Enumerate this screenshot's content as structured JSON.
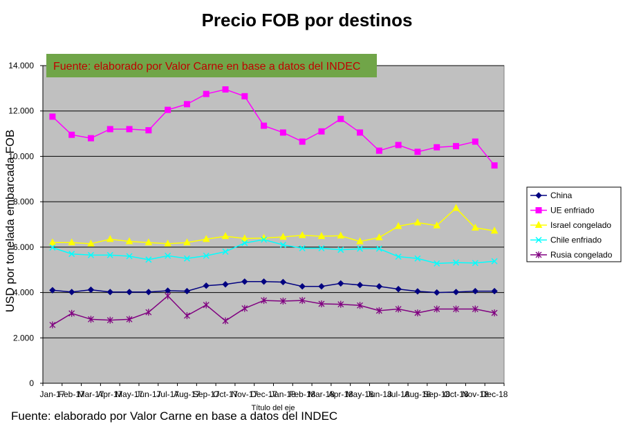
{
  "chart_data": {
    "type": "line",
    "title": "Precio FOB por destinos",
    "xlabel": "Título del eje",
    "ylabel": "USD por tonelada embarcada FOB",
    "ylim": [
      0,
      14000
    ],
    "yticks": [
      0,
      2000,
      4000,
      6000,
      8000,
      10000,
      12000,
      14000
    ],
    "ytick_labels": [
      "0",
      "2.000",
      "4.000",
      "6.000",
      "8.000",
      "10.000",
      "12.000",
      "14.000"
    ],
    "grid": true,
    "legend_position": "right",
    "categories": [
      "Jan-17",
      "Feb-17",
      "Mar-17",
      "Apr-17",
      "May-17",
      "Jun-17",
      "Jul-17",
      "Aug-17",
      "Sep-17",
      "Oct-17",
      "Nov-17",
      "Dec-17",
      "Jan-18",
      "Feb-18",
      "Mar-18",
      "Apr-18",
      "May-18",
      "Jun-18",
      "Jul-18",
      "Aug-18",
      "Sep-18",
      "Oct-18",
      "Nov-18",
      "Dec-18"
    ],
    "series": [
      {
        "name": "China",
        "color": "#000080",
        "marker": "diamond",
        "values": [
          4100,
          4020,
          4120,
          4020,
          4020,
          4020,
          4080,
          4060,
          4300,
          4360,
          4480,
          4480,
          4460,
          4270,
          4270,
          4400,
          4330,
          4270,
          4150,
          4050,
          4000,
          4020,
          4060,
          4060
        ]
      },
      {
        "name": "UE enfriado",
        "color": "#ff00ff",
        "marker": "square",
        "values": [
          11750,
          10950,
          10800,
          11200,
          11200,
          11150,
          12050,
          12300,
          12750,
          12950,
          12650,
          11350,
          11050,
          10650,
          11100,
          11650,
          11050,
          10250,
          10500,
          10200,
          10400,
          10450,
          10650,
          9600
        ]
      },
      {
        "name": "Israel congelado",
        "color": "#ffff00",
        "marker": "triangle",
        "values": [
          6200,
          6200,
          6150,
          6350,
          6250,
          6200,
          6150,
          6200,
          6350,
          6480,
          6380,
          6400,
          6450,
          6520,
          6480,
          6500,
          6250,
          6420,
          6920,
          7080,
          6950,
          7720,
          6850,
          6720
        ]
      },
      {
        "name": "Chile enfriado",
        "color": "#00ffff",
        "marker": "x",
        "values": [
          5980,
          5700,
          5650,
          5650,
          5600,
          5450,
          5620,
          5500,
          5620,
          5800,
          6180,
          6330,
          6100,
          5950,
          5950,
          5880,
          5930,
          5930,
          5580,
          5500,
          5280,
          5320,
          5300,
          5380
        ]
      },
      {
        "name": "Rusia congelado",
        "color": "#800080",
        "marker": "star",
        "values": [
          2570,
          3080,
          2820,
          2780,
          2820,
          3130,
          3850,
          2980,
          3450,
          2750,
          3300,
          3650,
          3620,
          3650,
          3500,
          3480,
          3430,
          3200,
          3270,
          3100,
          3270,
          3270,
          3270,
          3100
        ]
      }
    ],
    "annotation": "Fuente: elaborado por Valor Carne en base a datos del INDEC",
    "footer": "Fuente: elaborado por Valor Carne en base a datos del INDEC",
    "colors": {
      "plot_background": "#c0c0c0",
      "banner_background": "#70a548",
      "banner_text": "#c00000",
      "gridline": "#000000"
    }
  }
}
